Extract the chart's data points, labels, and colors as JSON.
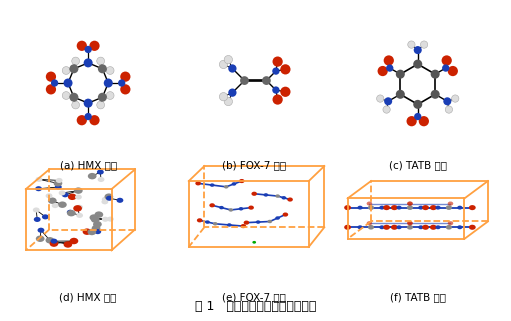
{
  "caption": "图 1   典型炸药的分子和晶体结构",
  "panels": [
    {
      "label": "(a) HMX 分子",
      "row": 0,
      "col": 0
    },
    {
      "label": "(b) FOX-7 分子",
      "row": 0,
      "col": 1
    },
    {
      "label": "(c) TATB 分子",
      "row": 0,
      "col": 2
    },
    {
      "label": "(d) HMX 晶体",
      "row": 1,
      "col": 0
    },
    {
      "label": "(e) FOX-7 晶体",
      "row": 1,
      "col": 1
    },
    {
      "label": "(f) TATB 晶体",
      "row": 1,
      "col": 2
    }
  ],
  "bg_color": "#ffffff",
  "label_fontsize": 7.5,
  "caption_fontsize": 9,
  "orange_color": "#FFA040",
  "blue_color": "#1a3eb5",
  "red_color": "#cc2200",
  "gray_color": "#666666",
  "white_atom": "#dddddd",
  "figsize": [
    5.11,
    3.21
  ],
  "dpi": 100
}
